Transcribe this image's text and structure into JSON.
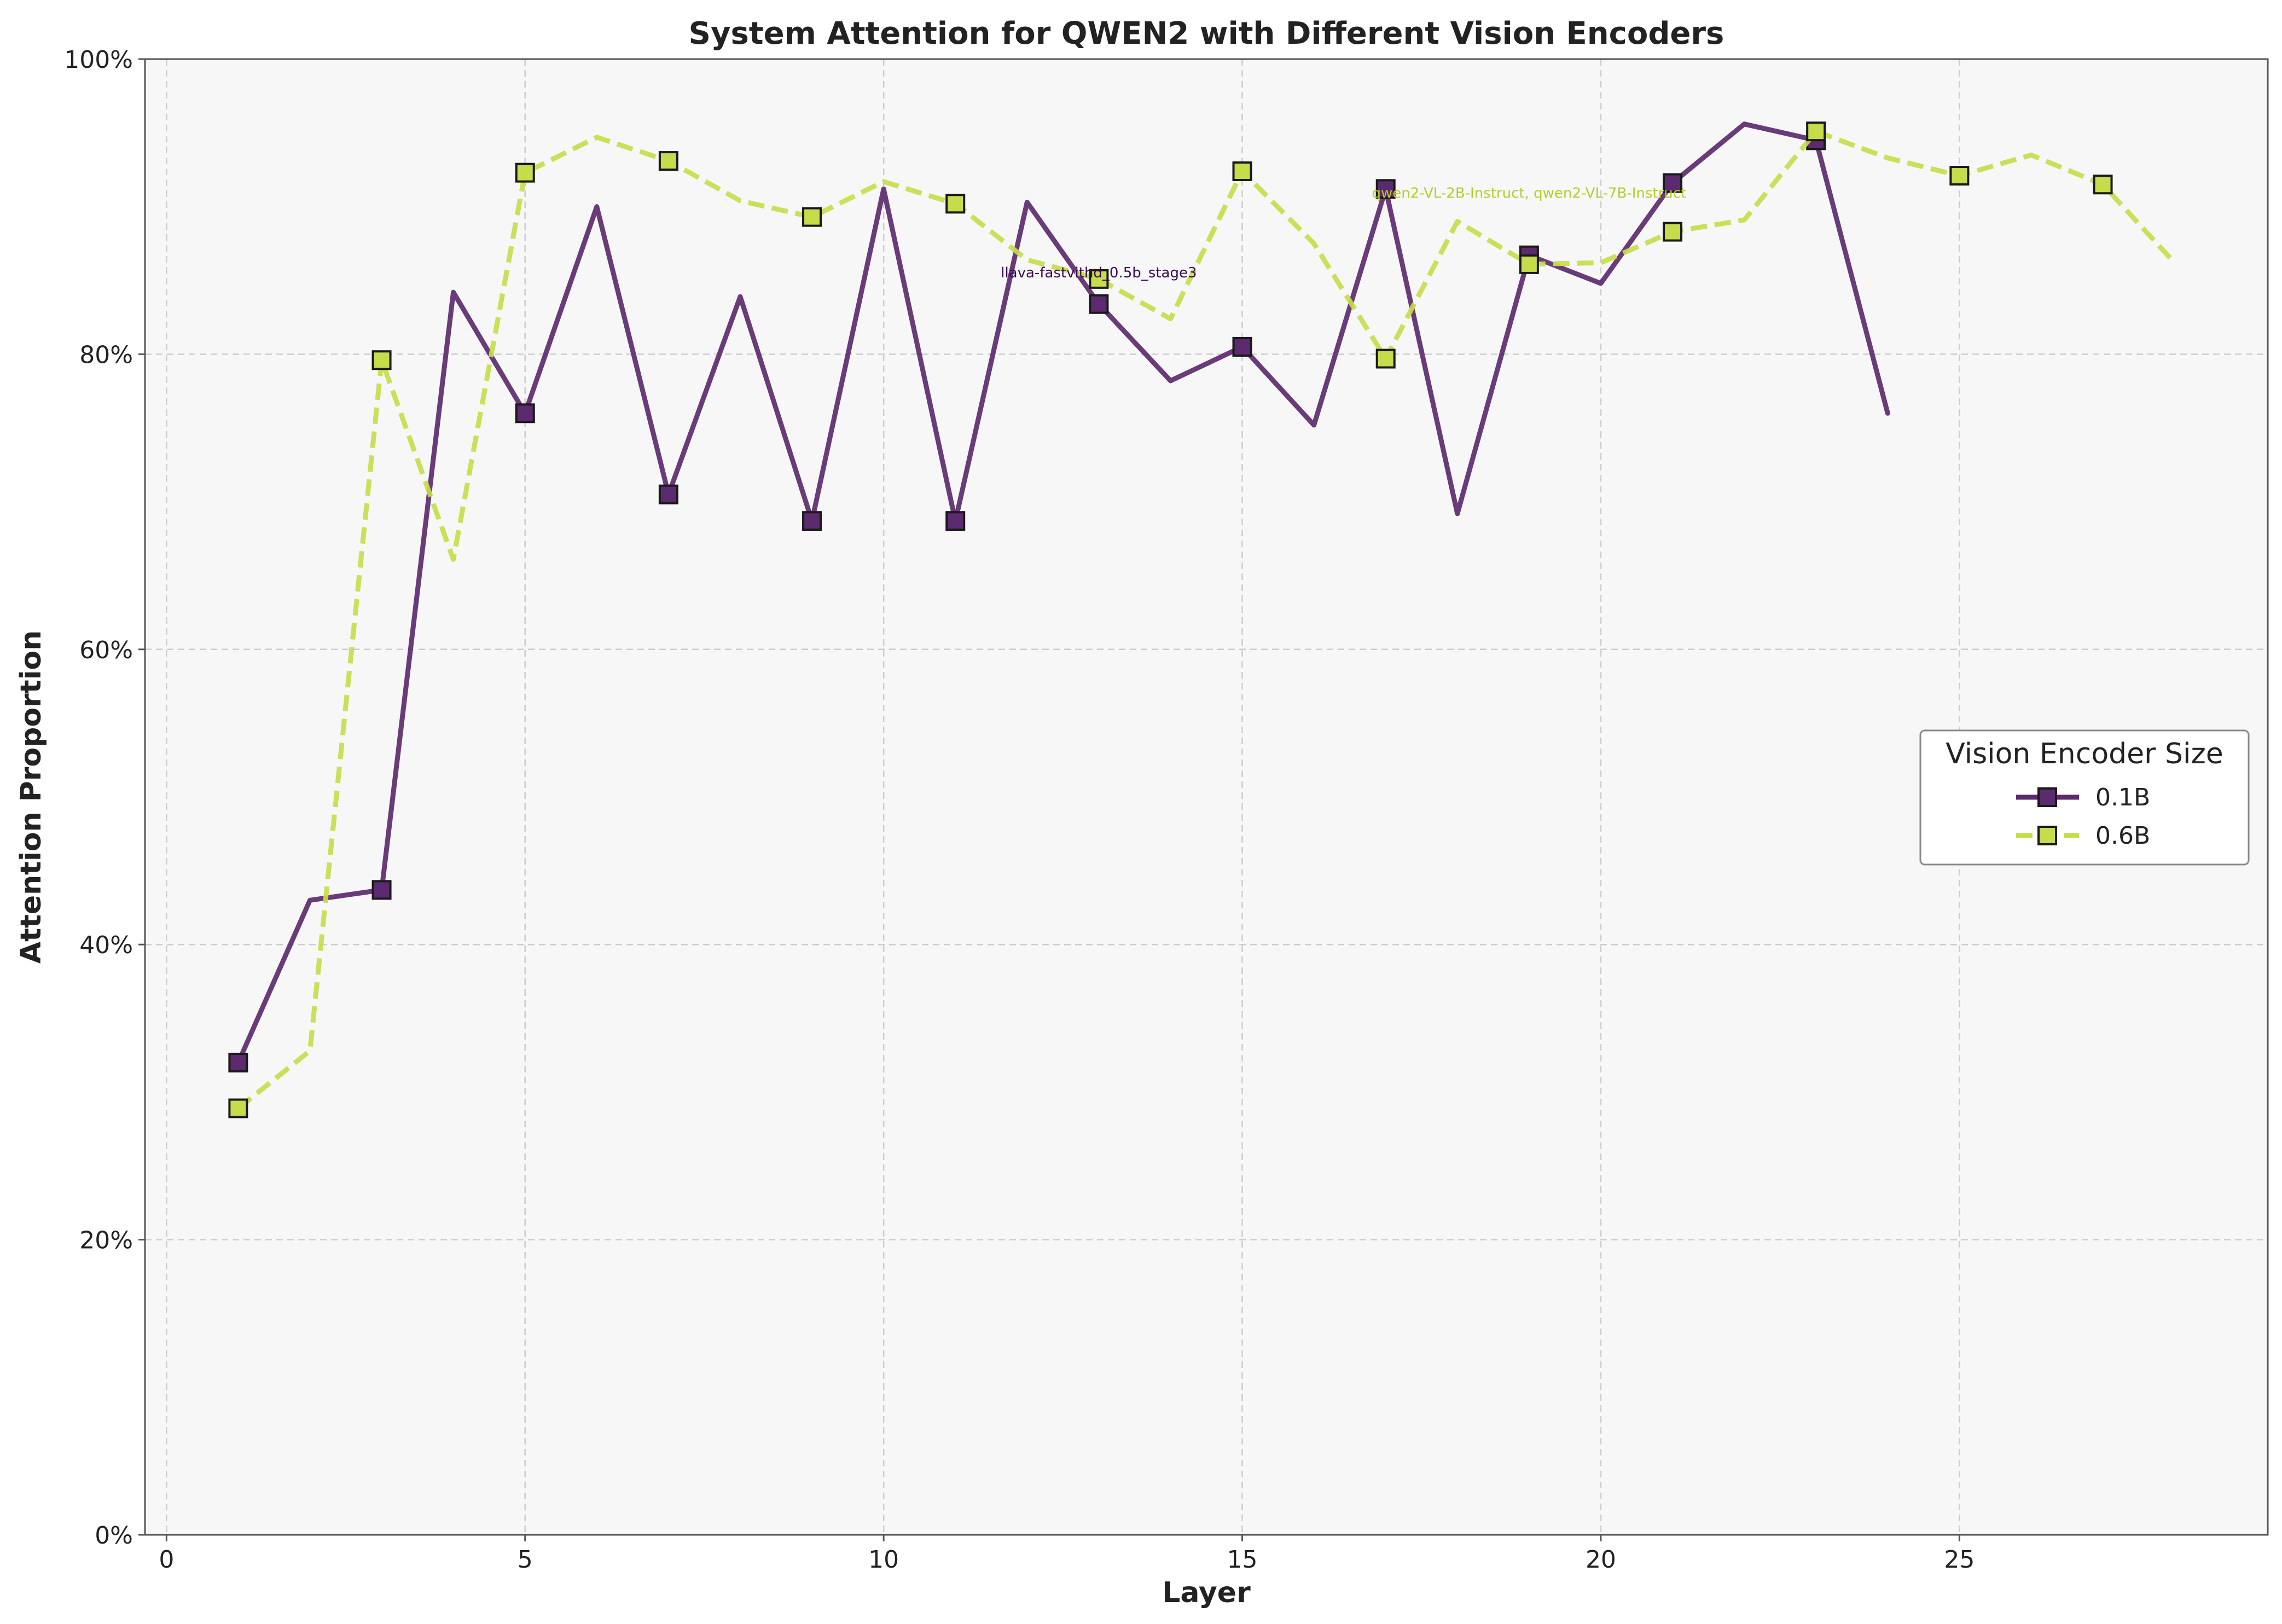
{
  "chart_data": {
    "type": "line",
    "title": "System Attention for QWEN2 with Different Vision Encoders",
    "xlabel": "Layer",
    "ylabel": "Attention Proportion",
    "xlim": [
      -0.3,
      29.3
    ],
    "ylim": [
      0,
      100
    ],
    "x_ticks": [
      0,
      5,
      10,
      15,
      20,
      25
    ],
    "y_ticks": [
      0,
      20,
      40,
      60,
      80,
      100
    ],
    "y_tick_format": "percent",
    "grid": true,
    "background": "#f7f7f7",
    "legend": {
      "title": "Vision Encoder Size",
      "placement": "center-right"
    },
    "series": [
      {
        "name": "0.1B",
        "color": "#5c2a6e",
        "line_style": "solid",
        "marker": "square",
        "marker_every": 2,
        "x": [
          1,
          2,
          3,
          4,
          5,
          6,
          7,
          8,
          9,
          10,
          11,
          12,
          13,
          14,
          15,
          16,
          17,
          18,
          19,
          20,
          21,
          22,
          23,
          24
        ],
        "values": [
          32.0,
          43.0,
          43.7,
          84.2,
          76.0,
          90.0,
          70.5,
          83.9,
          68.7,
          91.2,
          68.7,
          90.3,
          83.4,
          78.2,
          80.5,
          75.2,
          91.2,
          69.2,
          86.7,
          84.8,
          91.6,
          95.6,
          94.5,
          76.0
        ]
      },
      {
        "name": "0.6B",
        "color": "#c7dc4b",
        "line_style": "dashed",
        "marker": "square",
        "marker_every": 2,
        "x": [
          1,
          2,
          3,
          4,
          5,
          6,
          7,
          8,
          9,
          10,
          11,
          12,
          13,
          14,
          15,
          16,
          17,
          18,
          19,
          20,
          21,
          22,
          23,
          24,
          25,
          26,
          27,
          28
        ],
        "values": [
          28.9,
          32.8,
          79.6,
          66.1,
          92.3,
          94.7,
          93.1,
          90.4,
          89.3,
          91.7,
          90.2,
          86.4,
          85.1,
          82.4,
          92.4,
          87.5,
          79.7,
          89.0,
          86.1,
          86.2,
          88.3,
          89.1,
          95.1,
          93.3,
          92.1,
          93.5,
          91.5,
          86.2
        ]
      }
    ],
    "annotations": [
      {
        "text": "llava-fastvithd_0.5b_stage3",
        "x": 13,
        "y": 85.2,
        "color": "#3a0a54"
      },
      {
        "text": "qwen2-VL-2B-Instruct, qwen2-VL-7B-Instruct",
        "x": 19,
        "y": 90.6,
        "color": "#b6cc2a"
      }
    ]
  }
}
